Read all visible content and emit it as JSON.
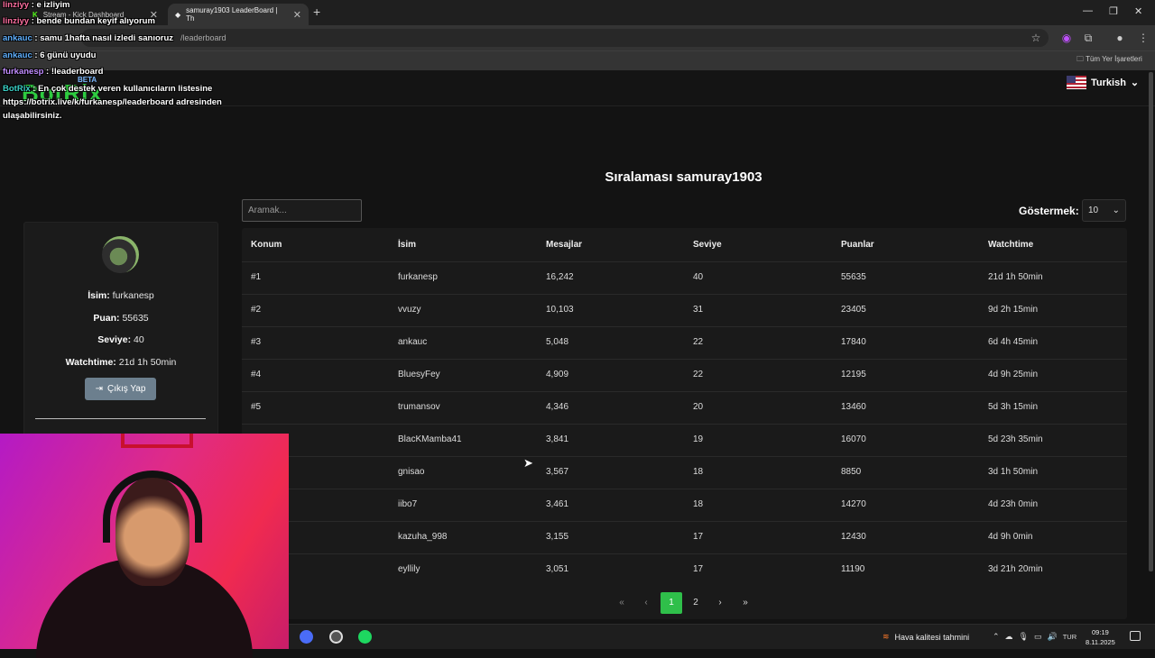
{
  "browser": {
    "tabs": [
      {
        "label": "Stream - Kick Dashboard"
      },
      {
        "label": "samuray1903 LeaderBoard | Th"
      }
    ],
    "url": "/leaderboard",
    "bookmarks_all": "Tüm Yer İşaretleri"
  },
  "site": {
    "logo": "BotRix",
    "beta": "BETA",
    "language": "Turkish"
  },
  "page": {
    "title": "Sıralaması samuray1903",
    "search_placeholder": "Aramak...",
    "show_label": "Göstermek:",
    "show_value": "10"
  },
  "profile": {
    "name_label": "İsim:",
    "name": "furkanesp",
    "points_label": "Puan:",
    "points": "55635",
    "level_label": "Seviye:",
    "level": "40",
    "watchtime_label": "Watchtime:",
    "watchtime": "21d 1h 50min",
    "logout": "Çıkış Yap"
  },
  "table": {
    "headers": [
      "Konum",
      "İsim",
      "Mesajlar",
      "Seviye",
      "Puanlar",
      "Watchtime"
    ],
    "rows": [
      [
        "#1",
        "furkanesp",
        "16,242",
        "40",
        "55635",
        "21d 1h 50min"
      ],
      [
        "#2",
        "vvuzy",
        "10,103",
        "31",
        "23405",
        "9d 2h 15min"
      ],
      [
        "#3",
        "ankauc",
        "5,048",
        "22",
        "17840",
        "6d 4h 45min"
      ],
      [
        "#4",
        "BluesyFey",
        "4,909",
        "22",
        "12195",
        "4d 9h 25min"
      ],
      [
        "#5",
        "trumansov",
        "4,346",
        "20",
        "13460",
        "5d 3h 15min"
      ],
      [
        "",
        "BlacKMamba41",
        "3,841",
        "19",
        "16070",
        "5d 23h 35min"
      ],
      [
        "",
        "gnisao",
        "3,567",
        "18",
        "8850",
        "3d 1h 50min"
      ],
      [
        "",
        "iibo7",
        "3,461",
        "18",
        "14270",
        "4d 23h 0min"
      ],
      [
        "",
        "kazuha_998",
        "3,155",
        "17",
        "12430",
        "4d 9h 0min"
      ],
      [
        "",
        "eyllily",
        "3,051",
        "17",
        "11190",
        "3d 21h 20min"
      ]
    ]
  },
  "pagination": {
    "pages": [
      "1",
      "2"
    ],
    "current": "1"
  },
  "chat": [
    {
      "user": "linziyy",
      "msg": ": e izliyim"
    },
    {
      "user": "linziyy",
      "msg": ": bende bundan keyif alıyorum"
    },
    {
      "user": "ankauc",
      "msg": ": samu 1hafta nasıl izledi sanıoruz"
    },
    {
      "user": "ankauc",
      "msg": ": 6 günü uyudu"
    },
    {
      "user": "furkanesp",
      "msg": ": !leaderboard"
    },
    {
      "user": "BotRix",
      "msg": ": En çok destek veren kullanıcıların listesine"
    },
    {
      "user": "",
      "msg": "https://botrix.live/k/furkanesp/leaderboard adresinden"
    },
    {
      "user": "",
      "msg": "ulaşabilirsiniz."
    }
  ],
  "taskbar": {
    "weather": "Hava kalitesi tahmini",
    "lang": "TUR",
    "time": "09:19",
    "date": "8.11.2025"
  }
}
